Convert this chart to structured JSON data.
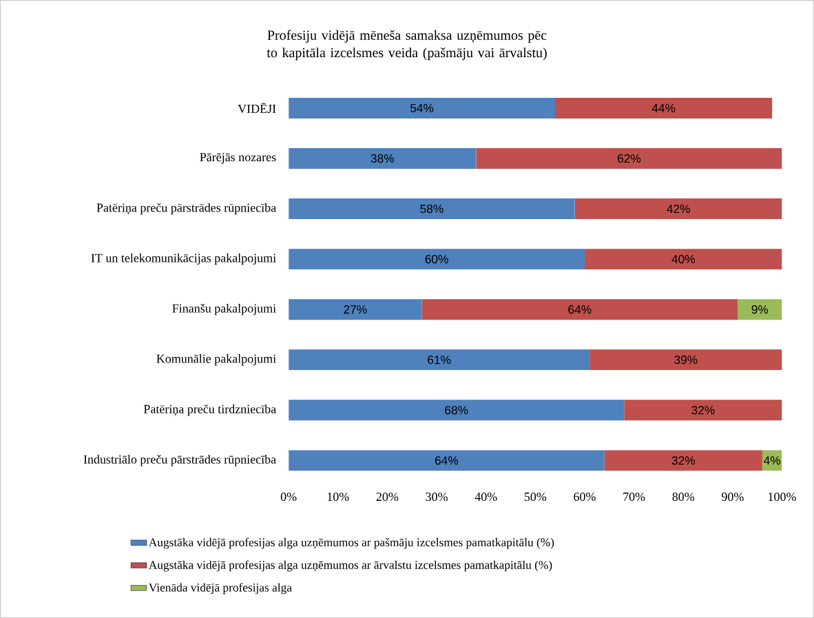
{
  "chart_data": {
    "type": "bar",
    "orientation": "horizontal",
    "stacked": true,
    "title": "Profesiju vidējā mēneša samaksa uzņēmumos pēc to kapitāla izcelsmes veida (pašmāju vai ārvalstu)",
    "categories": [
      "VIDĒJI",
      "Pārējās nozares",
      "Patēriņa preču pārstrādes rūpniecība",
      "IT un telekomunikācijas pakalpojumi",
      "Finanšu pakalpojumi",
      "Komunālie pakalpojumi",
      "Patēriņa preču tirdzniecība",
      "Industriālo preču pārstrādes rūpniecība"
    ],
    "series": [
      {
        "name": "Augstāka vidējā profesijas alga uzņēmumos ar pašmāju izcelsmes pamatkapitālu (%)",
        "color": "#4f81bd",
        "values": [
          54,
          38,
          58,
          60,
          27,
          61,
          68,
          64
        ],
        "value_labels": [
          "54%",
          "38%",
          "58%",
          "60%",
          "27%",
          "61%",
          "68%",
          "64%"
        ]
      },
      {
        "name": "Augstāka vidējā profesijas alga uzņēmumos ar ārvalstu izcelsmes pamatkapitālu (%)",
        "color": "#c0504d",
        "values": [
          44,
          62,
          42,
          40,
          64,
          39,
          32,
          32
        ],
        "value_labels": [
          "44%",
          "62%",
          "42%",
          "40%",
          "64%",
          "39%",
          "32%",
          "32%"
        ]
      },
      {
        "name": "Vienāda vidējā profesijas alga",
        "color": "#9bbb59",
        "values": [
          null,
          null,
          null,
          null,
          9,
          null,
          null,
          4
        ],
        "value_labels": [
          null,
          null,
          null,
          null,
          "9%",
          null,
          null,
          "4%"
        ]
      }
    ],
    "xlim": [
      0,
      100
    ],
    "xticks": [
      {
        "value": 0,
        "label": "0%"
      },
      {
        "value": 10,
        "label": "10%"
      },
      {
        "value": 20,
        "label": "20%"
      },
      {
        "value": 30,
        "label": "30%"
      },
      {
        "value": 40,
        "label": "40%"
      },
      {
        "value": 50,
        "label": "50%"
      },
      {
        "value": 60,
        "label": "60%"
      },
      {
        "value": 70,
        "label": "70%"
      },
      {
        "value": 80,
        "label": "80%"
      },
      {
        "value": 90,
        "label": "90%"
      },
      {
        "value": 100,
        "label": "100%"
      }
    ],
    "legend": "bottom"
  }
}
